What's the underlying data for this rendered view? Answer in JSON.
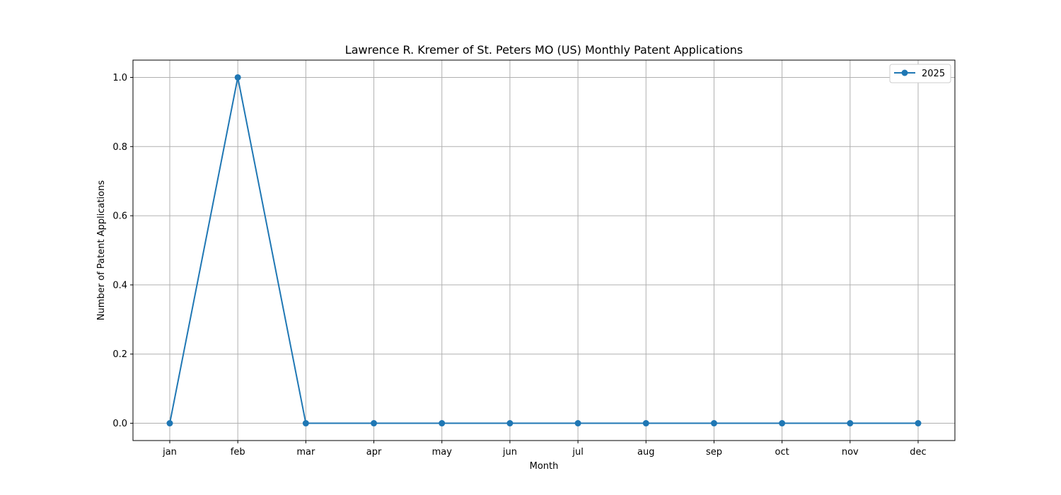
{
  "chart_data": {
    "type": "line",
    "title": "Lawrence R. Kremer of St. Peters MO (US) Monthly Patent Applications",
    "xlabel": "Month",
    "ylabel": "Number of Patent Applications",
    "categories": [
      "jan",
      "feb",
      "mar",
      "apr",
      "may",
      "jun",
      "jul",
      "aug",
      "sep",
      "oct",
      "nov",
      "dec"
    ],
    "ylim": [
      -0.05,
      1.05
    ],
    "yticks": [
      "0.0",
      "0.2",
      "0.4",
      "0.6",
      "0.8",
      "1.0"
    ],
    "grid": true,
    "legend_position": "top-right",
    "series": [
      {
        "name": "2025",
        "color": "#1f77b4",
        "marker": "circle",
        "values": [
          0,
          1,
          0,
          0,
          0,
          0,
          0,
          0,
          0,
          0,
          0,
          0
        ]
      }
    ]
  }
}
